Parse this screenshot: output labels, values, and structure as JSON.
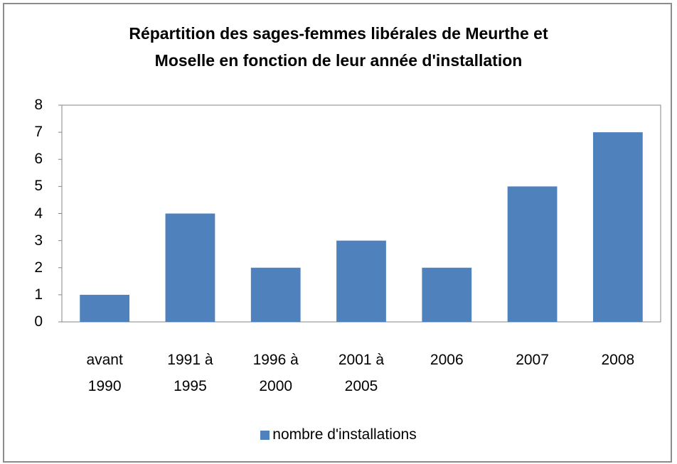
{
  "chart_data": {
    "type": "bar",
    "title": "Répartition des sages-femmes libérales de Meurthe et Moselle en fonction de leur année d'installation",
    "categories": [
      "avant 1990",
      "1991 à 1995",
      "1996 à 2000",
      "2001 à 2005",
      "2006",
      "2007",
      "2008"
    ],
    "series": [
      {
        "name": "nombre d'installations",
        "color": "#4f81bd",
        "values": [
          1,
          4,
          2,
          3,
          2,
          5,
          7
        ]
      }
    ],
    "ylim": [
      0,
      8
    ],
    "yticks": [
      0,
      1,
      2,
      3,
      4,
      5,
      6,
      7,
      8
    ],
    "grid": false,
    "legend": "bottom"
  }
}
